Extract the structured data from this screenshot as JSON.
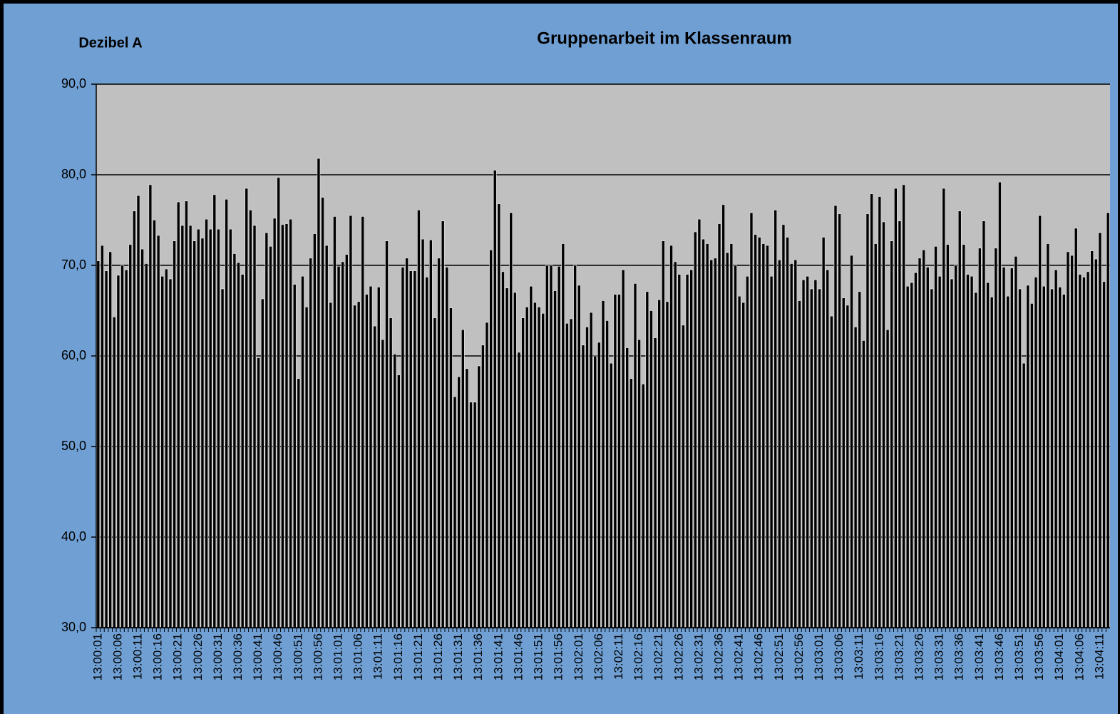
{
  "chart_data": {
    "type": "bar",
    "title": "Gruppenarbeit im Klassenraum",
    "y_label": "Dezibel A",
    "categories": [
      "13:00:01",
      null,
      null,
      null,
      null,
      "13:00:06",
      null,
      null,
      null,
      null,
      "13:00:11",
      null,
      null,
      null,
      null,
      "13:00:16",
      null,
      null,
      null,
      null,
      "13:00:21",
      null,
      null,
      null,
      null,
      "13:00:26",
      null,
      null,
      null,
      null,
      "13:00:31",
      null,
      null,
      null,
      null,
      "13:00:36",
      null,
      null,
      null,
      null,
      "13:00:41",
      null,
      null,
      null,
      null,
      "13:00:46",
      null,
      null,
      null,
      null,
      "13:00:51",
      null,
      null,
      null,
      null,
      "13:00:56",
      null,
      null,
      null,
      null,
      "13:01:01",
      null,
      null,
      null,
      null,
      "13:01:06",
      null,
      null,
      null,
      null,
      "13:01:11",
      null,
      null,
      null,
      null,
      "13:01:16",
      null,
      null,
      null,
      null,
      "13:01:21",
      null,
      null,
      null,
      null,
      "13:01:26",
      null,
      null,
      null,
      null,
      "13:01:31",
      null,
      null,
      null,
      null,
      "13:01:36",
      null,
      null,
      null,
      null,
      "13:01:41",
      null,
      null,
      null,
      null,
      "13:01:46",
      null,
      null,
      null,
      null,
      "13:01:51",
      null,
      null,
      null,
      null,
      "13:01:56",
      null,
      null,
      null,
      null,
      "13:02:01",
      null,
      null,
      null,
      null,
      "13:02:06",
      null,
      null,
      null,
      null,
      "13:02:11",
      null,
      null,
      null,
      null,
      "13:02:16",
      null,
      null,
      null,
      null,
      "13:02:21",
      null,
      null,
      null,
      null,
      "13:02:26",
      null,
      null,
      null,
      null,
      "13:02:31",
      null,
      null,
      null,
      null,
      "13:02:36",
      null,
      null,
      null,
      null,
      "13:02:41",
      null,
      null,
      null,
      null,
      "13:02:46",
      null,
      null,
      null,
      null,
      "13:02:51",
      null,
      null,
      null,
      null,
      "13:02:56",
      null,
      null,
      null,
      null,
      "13:03:01",
      null,
      null,
      null,
      null,
      "13:03:06",
      null,
      null,
      null,
      null,
      "13:03:11",
      null,
      null,
      null,
      null,
      "13:03:16",
      null,
      null,
      null,
      null,
      "13:03:21",
      null,
      null,
      null,
      null,
      "13:03:26",
      null,
      null,
      null,
      null,
      "13:03:31",
      null,
      null,
      null,
      null,
      "13:03:36",
      null,
      null,
      null,
      null,
      "13:03:41",
      null,
      null,
      null,
      null,
      "13:03:46",
      null,
      null,
      null,
      null,
      "13:03:51",
      null,
      null,
      null,
      null,
      "13:03:56",
      null,
      null,
      null,
      null,
      "13:04:01",
      null,
      null,
      null,
      null,
      "13:04:06",
      null,
      null,
      null,
      null,
      "13:04:11",
      null,
      null
    ],
    "values": [
      70.5,
      72.2,
      69.4,
      71.5,
      64.3,
      68.9,
      70.0,
      69.5,
      72.3,
      76.0,
      77.7,
      71.8,
      70.2,
      78.9,
      75.0,
      73.3,
      68.8,
      69.6,
      68.5,
      72.7,
      77.0,
      74.4,
      77.1,
      74.4,
      72.7,
      74.0,
      73.0,
      75.1,
      74.0,
      77.8,
      74.0,
      67.4,
      77.3,
      74.0,
      71.3,
      70.3,
      69.0,
      78.5,
      76.1,
      74.4,
      59.8,
      66.3,
      73.6,
      72.1,
      75.2,
      79.7,
      74.5,
      74.6,
      75.1,
      67.9,
      57.5,
      68.8,
      65.4,
      70.8,
      73.5,
      81.8,
      77.5,
      72.2,
      65.9,
      75.4,
      69.9,
      70.4,
      71.2,
      75.5,
      65.6,
      66.0,
      75.4,
      66.8,
      67.7,
      63.3,
      67.6,
      61.8,
      72.7,
      64.2,
      60.2,
      57.9,
      69.8,
      70.8,
      69.4,
      69.4,
      76.1,
      72.9,
      68.7,
      72.8,
      64.2,
      70.8,
      74.9,
      69.8,
      65.3,
      55.5,
      57.7,
      62.9,
      58.6,
      54.9,
      54.9,
      58.9,
      61.2,
      63.7,
      71.7,
      80.5,
      76.8,
      69.3,
      67.5,
      75.8,
      67.0,
      60.4,
      64.2,
      65.4,
      67.7,
      65.9,
      65.4,
      64.7,
      70.0,
      70.0,
      67.2,
      69.9,
      72.4,
      63.6,
      64.1,
      70.0,
      67.8,
      61.2,
      63.2,
      64.8,
      60.0,
      61.5,
      66.1,
      63.9,
      59.2,
      66.8,
      66.8,
      69.5,
      60.9,
      57.5,
      68.0,
      61.8,
      56.9,
      67.1,
      65.0,
      62.0,
      66.2,
      72.7,
      66.0,
      72.2,
      70.4,
      69.0,
      63.4,
      69.0,
      69.5,
      73.7,
      75.1,
      72.9,
      72.4,
      70.6,
      70.8,
      74.6,
      76.7,
      71.4,
      72.4,
      70.0,
      66.6,
      65.9,
      68.8,
      75.8,
      73.4,
      73.1,
      72.4,
      72.2,
      68.8,
      76.1,
      70.6,
      74.5,
      73.1,
      70.2,
      70.6,
      66.1,
      68.4,
      68.8,
      67.4,
      68.4,
      67.4,
      73.1,
      69.5,
      64.4,
      76.6,
      75.7,
      66.4,
      65.6,
      71.1,
      63.2,
      67.1,
      61.7,
      75.7,
      77.9,
      72.4,
      77.6,
      74.8,
      62.9,
      72.7,
      78.5,
      74.9,
      78.9,
      67.7,
      68.1,
      69.2,
      70.8,
      71.7,
      69.8,
      67.4,
      72.1,
      68.8,
      78.5,
      72.3,
      68.5,
      70.0,
      76.0,
      72.3,
      69.0,
      68.8,
      67.0,
      71.9,
      74.9,
      68.1,
      66.5,
      71.9,
      79.2,
      69.8,
      66.6,
      69.7,
      71.0,
      67.4,
      59.2,
      67.8,
      65.8,
      68.7,
      75.5,
      67.7,
      72.4,
      67.4,
      69.5,
      67.6,
      66.8,
      71.5,
      71.1,
      74.1,
      69.0,
      68.7,
      69.3,
      71.6,
      70.7,
      73.6,
      68.2,
      75.8
    ],
    "color": "#000000",
    "ylim": [
      30,
      90
    ],
    "yticks": [
      {
        "value": 30,
        "label": "30,0"
      },
      {
        "value": 40,
        "label": "40,0"
      },
      {
        "value": 50,
        "label": "50,0"
      },
      {
        "value": 60,
        "label": "60,0"
      },
      {
        "value": 70,
        "label": "70,0"
      },
      {
        "value": 80,
        "label": "80,0"
      },
      {
        "value": 90,
        "label": "90,0"
      }
    ],
    "grid": true
  }
}
